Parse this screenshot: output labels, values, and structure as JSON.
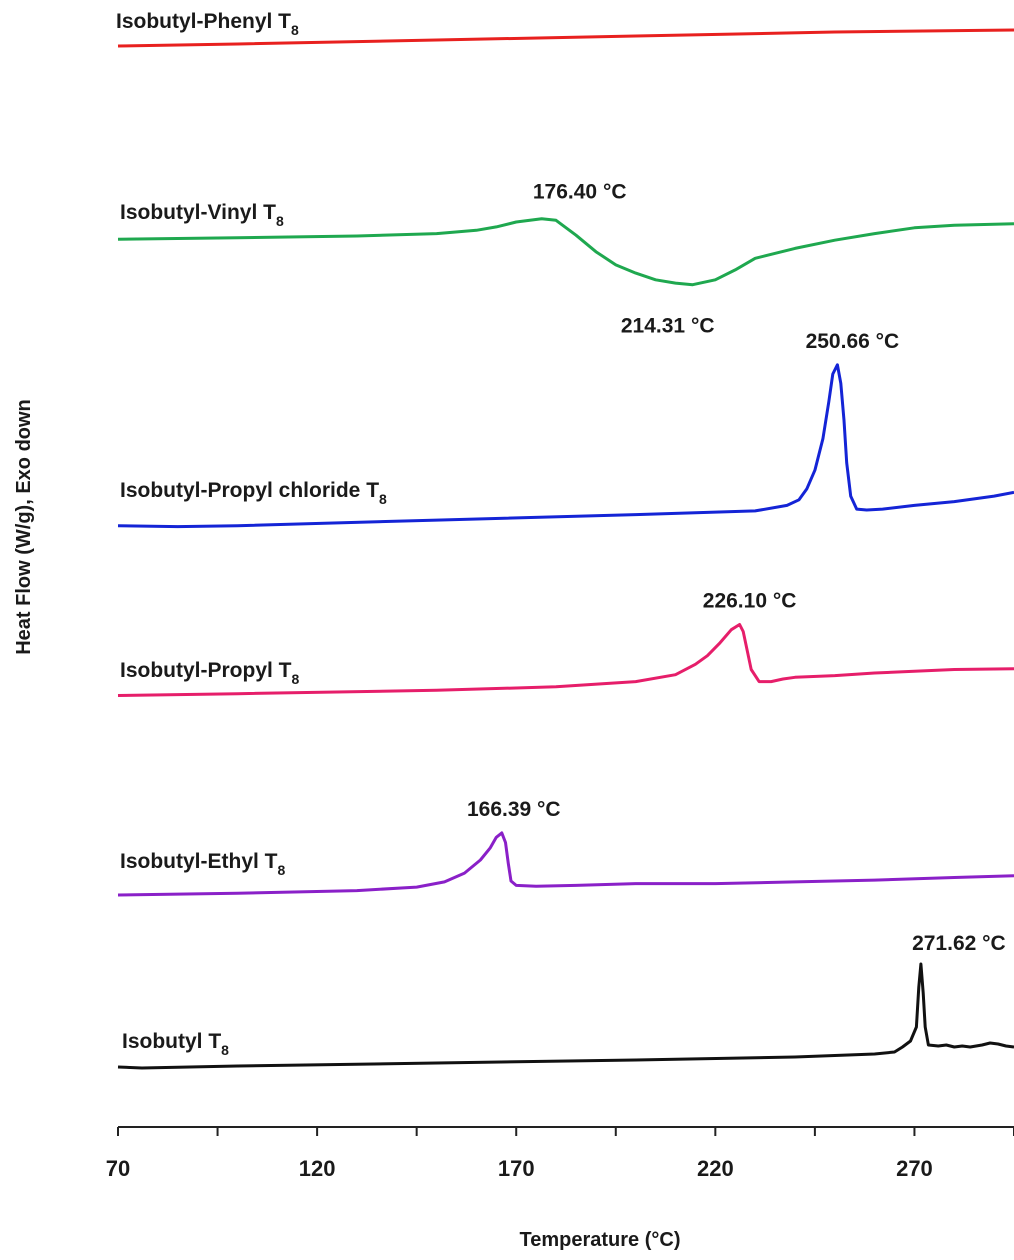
{
  "chart_data": {
    "type": "line",
    "xlabel": "Temperature (°C)",
    "ylabel": "Heat Flow (W/g), Exo down",
    "xlim": [
      70,
      295
    ],
    "x_ticks": [
      "70",
      "120",
      "170",
      "220",
      "270"
    ],
    "x_tick_values": [
      70,
      120,
      170,
      220,
      270
    ],
    "x_minor_step": 25,
    "y_ticks": "none",
    "grid": false,
    "legend": "none (series labeled inline)",
    "series": [
      {
        "name": "Isobutyl-Phenyl T",
        "subscript": "8",
        "color": "#e8211f",
        "peaks": [],
        "points": [
          [
            70,
            -0.2
          ],
          [
            100,
            -0.15
          ],
          [
            150,
            -0.05
          ],
          [
            200,
            0.05
          ],
          [
            250,
            0.15
          ],
          [
            295,
            0.2
          ]
        ]
      },
      {
        "name": "Isobutyl-Vinyl T",
        "subscript": "8",
        "color": "#1fa84f",
        "peaks": [
          {
            "x": 176.4,
            "label": "176.40 °C"
          },
          {
            "x": 214.31,
            "label": "214.31 °C"
          }
        ],
        "points": [
          [
            70,
            -1.05
          ],
          [
            100,
            -0.95
          ],
          [
            130,
            -0.85
          ],
          [
            150,
            -0.7
          ],
          [
            160,
            -0.5
          ],
          [
            165,
            -0.3
          ],
          [
            170,
            0
          ],
          [
            176.4,
            0.2
          ],
          [
            180,
            0.1
          ],
          [
            185,
            -0.8
          ],
          [
            190,
            -1.8
          ],
          [
            195,
            -2.6
          ],
          [
            200,
            -3.1
          ],
          [
            205,
            -3.5
          ],
          [
            210,
            -3.7
          ],
          [
            214.31,
            -3.8
          ],
          [
            220,
            -3.5
          ],
          [
            225,
            -2.9
          ],
          [
            230,
            -2.2
          ],
          [
            240,
            -1.6
          ],
          [
            250,
            -1.1
          ],
          [
            260,
            -0.7
          ],
          [
            270,
            -0.35
          ],
          [
            280,
            -0.2
          ],
          [
            295,
            -0.1
          ]
        ]
      },
      {
        "name": "Isobutyl-Propyl chloride T",
        "subscript": "8",
        "color": "#1424d6",
        "peaks": [
          {
            "x": 250.66,
            "label": "250.66 °C"
          }
        ],
        "points": [
          [
            70,
            -10.2
          ],
          [
            85,
            -10.25
          ],
          [
            100,
            -10.2
          ],
          [
            150,
            -9.9
          ],
          [
            200,
            -9.6
          ],
          [
            230,
            -9.4
          ],
          [
            238,
            -9.1
          ],
          [
            241,
            -8.8
          ],
          [
            243,
            -8.2
          ],
          [
            245,
            -7.2
          ],
          [
            247,
            -5.5
          ],
          [
            248.5,
            -3.5
          ],
          [
            249.5,
            -2.0
          ],
          [
            250.66,
            -1.5
          ],
          [
            251.5,
            -2.5
          ],
          [
            252.3,
            -4.5
          ],
          [
            253,
            -6.8
          ],
          [
            254,
            -8.6
          ],
          [
            255.5,
            -9.3
          ],
          [
            258,
            -9.35
          ],
          [
            262,
            -9.3
          ],
          [
            270,
            -9.1
          ],
          [
            280,
            -8.9
          ],
          [
            290,
            -8.6
          ],
          [
            295,
            -8.4
          ]
        ]
      },
      {
        "name": "Isobutyl-Propyl T",
        "subscript": "8",
        "color": "#e61e6a",
        "peaks": [
          {
            "x": 226.1,
            "label": "226.10 °C"
          }
        ],
        "points": [
          [
            70,
            -13.9
          ],
          [
            100,
            -13.8
          ],
          [
            150,
            -13.6
          ],
          [
            180,
            -13.4
          ],
          [
            200,
            -13.1
          ],
          [
            210,
            -12.7
          ],
          [
            215,
            -12.1
          ],
          [
            218,
            -11.6
          ],
          [
            221,
            -10.9
          ],
          [
            224,
            -10.1
          ],
          [
            226.1,
            -9.8
          ],
          [
            227,
            -10.2
          ],
          [
            228,
            -11.3
          ],
          [
            229,
            -12.4
          ],
          [
            231,
            -13.1
          ],
          [
            234,
            -13.1
          ],
          [
            237,
            -12.95
          ],
          [
            240,
            -12.85
          ],
          [
            250,
            -12.75
          ],
          [
            260,
            -12.6
          ],
          [
            270,
            -12.5
          ],
          [
            280,
            -12.4
          ],
          [
            295,
            -12.35
          ]
        ]
      },
      {
        "name": "Isobutyl-Ethyl T",
        "subscript": "8",
        "color": "#8a20c8",
        "peaks": [
          {
            "x": 166.39,
            "label": "166.39 °C"
          }
        ],
        "points": [
          [
            70,
            -17.6
          ],
          [
            100,
            -17.5
          ],
          [
            130,
            -17.35
          ],
          [
            145,
            -17.15
          ],
          [
            152,
            -16.85
          ],
          [
            157,
            -16.35
          ],
          [
            161,
            -15.6
          ],
          [
            163.5,
            -14.9
          ],
          [
            165,
            -14.3
          ],
          [
            166.39,
            -14.05
          ],
          [
            167.3,
            -14.6
          ],
          [
            168,
            -15.8
          ],
          [
            168.7,
            -16.8
          ],
          [
            170,
            -17.05
          ],
          [
            175,
            -17.1
          ],
          [
            185,
            -17.05
          ],
          [
            200,
            -16.95
          ],
          [
            220,
            -16.95
          ],
          [
            240,
            -16.85
          ],
          [
            260,
            -16.75
          ],
          [
            280,
            -16.6
          ],
          [
            295,
            -16.5
          ]
        ]
      },
      {
        "name": "Isobutyl T",
        "subscript": "8",
        "color": "#111111",
        "peaks": [
          {
            "x": 271.62,
            "label": "271.62 °C"
          }
        ],
        "points": [
          [
            70,
            -21.2
          ],
          [
            76,
            -21.25
          ],
          [
            100,
            -21.15
          ],
          [
            150,
            -21.0
          ],
          [
            200,
            -20.85
          ],
          [
            240,
            -20.7
          ],
          [
            260,
            -20.55
          ],
          [
            265,
            -20.45
          ],
          [
            267,
            -20.2
          ],
          [
            269,
            -19.9
          ],
          [
            270.5,
            -19.2
          ],
          [
            271.1,
            -17.2
          ],
          [
            271.62,
            -16.05
          ],
          [
            272.2,
            -17.5
          ],
          [
            272.7,
            -19.2
          ],
          [
            273.5,
            -20.1
          ],
          [
            276,
            -20.15
          ],
          [
            278,
            -20.1
          ],
          [
            280,
            -20.2
          ],
          [
            282,
            -20.15
          ],
          [
            284,
            -20.2
          ],
          [
            287,
            -20.1
          ],
          [
            289,
            -20.0
          ],
          [
            291,
            -20.05
          ],
          [
            293,
            -20.15
          ],
          [
            295,
            -20.2
          ]
        ]
      }
    ]
  }
}
